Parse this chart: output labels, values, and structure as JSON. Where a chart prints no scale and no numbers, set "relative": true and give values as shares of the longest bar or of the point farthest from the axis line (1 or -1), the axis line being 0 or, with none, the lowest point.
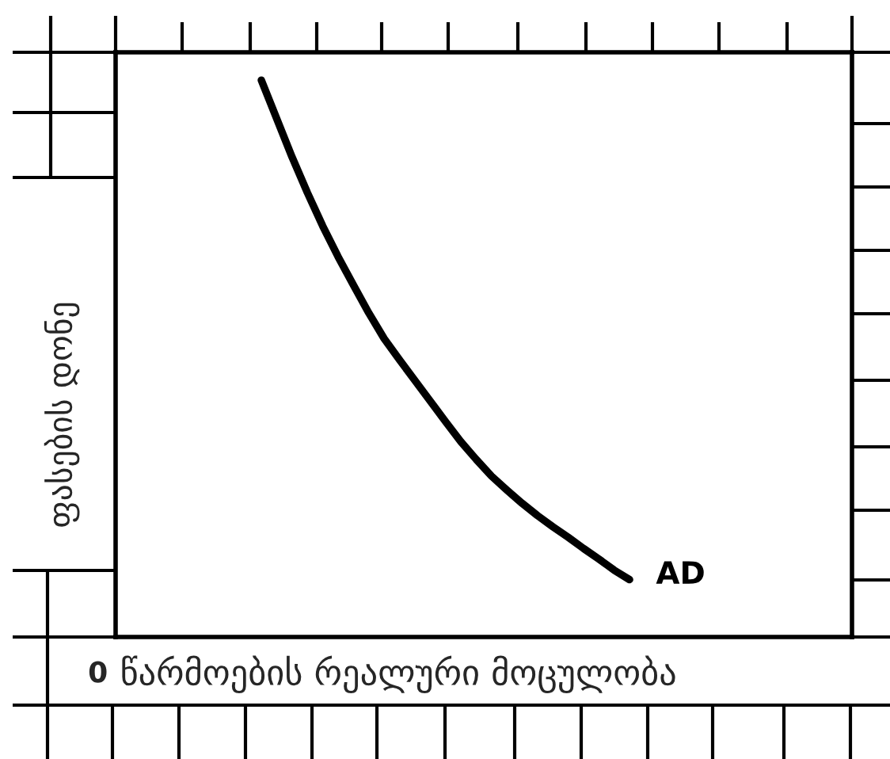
{
  "chart_data": {
    "type": "line",
    "xlabel": "წარმოების რეალური მოცულობა",
    "ylabel": "ფასების დონე",
    "relative": true,
    "marker": "none",
    "line_style": "solid",
    "categories": [
      null,
      null,
      null,
      null,
      null,
      null,
      null,
      null,
      null,
      null,
      null,
      null,
      null,
      null,
      null,
      null,
      null,
      null,
      null,
      null,
      null,
      null,
      null,
      null,
      null,
      null,
      null,
      null,
      null,
      null,
      null,
      null,
      null,
      null,
      null,
      null,
      null,
      null,
      null,
      null,
      null,
      null,
      null,
      null,
      null,
      null,
      null,
      null
    ],
    "series": [
      {
        "name": "AD",
        "color": "#000000",
        "values": [
          null,
          null,
          null,
          null,
          null,
          null,
          null,
          null,
          null,
          1,
          0.931,
          0.862,
          0.798,
          0.738,
          0.683,
          0.632,
          0.582,
          0.536,
          0.498,
          0.461,
          0.424,
          0.387,
          0.351,
          0.319,
          0.289,
          0.264,
          0.24,
          0.218,
          0.198,
          0.179,
          0.159,
          0.14,
          0.12,
          0.103,
          null,
          null,
          null,
          null,
          null,
          null,
          null,
          null,
          null,
          null,
          null,
          null,
          null,
          null
        ]
      }
    ],
    "annotations": [
      "0"
    ]
  }
}
